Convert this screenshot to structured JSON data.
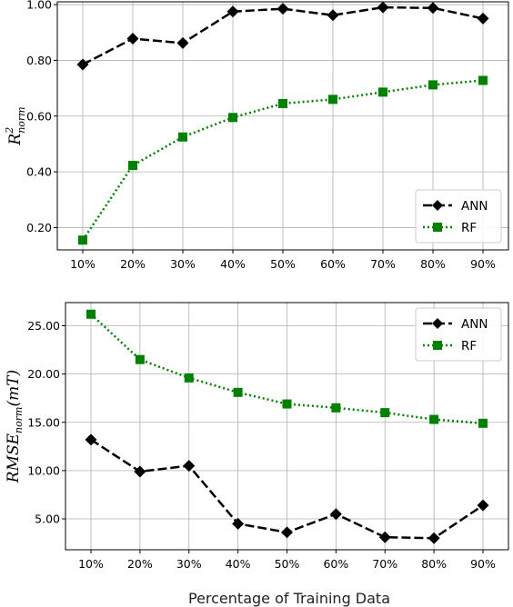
{
  "chart_data": [
    {
      "type": "line",
      "categories": [
        "10%",
        "20%",
        "30%",
        "40%",
        "50%",
        "60%",
        "70%",
        "80%",
        "90%"
      ],
      "series": [
        {
          "name": "ANN",
          "values": [
            0.785,
            0.878,
            0.862,
            0.975,
            0.985,
            0.962,
            0.99,
            0.988,
            0.95
          ],
          "color": "#000000",
          "marker": "diamond",
          "linestyle": "dashed"
        },
        {
          "name": "RF",
          "values": [
            0.155,
            0.423,
            0.525,
            0.595,
            0.645,
            0.66,
            0.686,
            0.712,
            0.728
          ],
          "color": "#008000",
          "marker": "square",
          "linestyle": "dotted"
        }
      ],
      "ylabel": "R",
      "ylabel_sup": "2",
      "ylabel_sub": "norm",
      "yticks": [
        "0.20",
        "0.40",
        "0.60",
        "0.80",
        "1.00"
      ],
      "ytick_values": [
        0.2,
        0.4,
        0.6,
        0.8,
        1.0
      ],
      "ylim": [
        0.12,
        1.01
      ],
      "grid": true,
      "legend_position": "lower-right"
    },
    {
      "type": "line",
      "categories": [
        "10%",
        "20%",
        "30%",
        "40%",
        "50%",
        "60%",
        "70%",
        "80%",
        "90%"
      ],
      "series": [
        {
          "name": "ANN",
          "values": [
            13.2,
            9.9,
            10.5,
            4.5,
            3.6,
            5.5,
            3.1,
            3.0,
            6.4
          ],
          "color": "#000000",
          "marker": "diamond",
          "linestyle": "dashed"
        },
        {
          "name": "RF",
          "values": [
            26.2,
            21.5,
            19.6,
            18.1,
            16.9,
            16.5,
            16.0,
            15.3,
            14.9
          ],
          "color": "#008000",
          "marker": "square",
          "linestyle": "dotted"
        }
      ],
      "ylabel": "RMSE",
      "ylabel_sub": "norm",
      "ylabel_suffix": "(mT)",
      "yticks": [
        "5.00",
        "10.00",
        "15.00",
        "20.00",
        "25.00"
      ],
      "ytick_values": [
        5,
        10,
        15,
        20,
        25
      ],
      "ylim": [
        1.8,
        27.4
      ],
      "grid": true,
      "legend_position": "upper-right"
    }
  ],
  "xlabel": "Percentage of Training Data"
}
